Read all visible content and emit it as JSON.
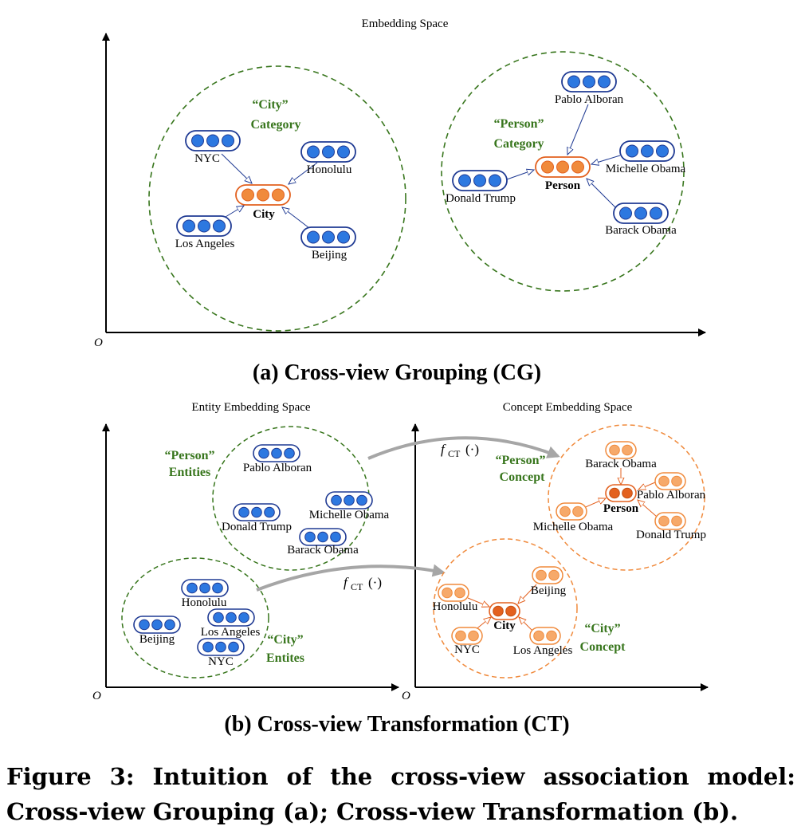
{
  "panel_a": {
    "title": "Embedding Space",
    "origin": "O",
    "subtitle": "(a) Cross-view Grouping (CG)",
    "city_group": {
      "label_line1": "“City”",
      "label_line2": "Category",
      "center": "City",
      "members": [
        "NYC",
        "Honolulu",
        "Los Angeles",
        "Beijing"
      ]
    },
    "person_group": {
      "label_line1": "“Person”",
      "label_line2": "Category",
      "center": "Person",
      "members": [
        "Pablo Alboran",
        "Michelle Obama",
        "Donald Trump",
        "Barack Obama"
      ]
    }
  },
  "panel_b": {
    "subtitle": "(b) Cross-view Transformation (CT)",
    "entity_space": {
      "title": "Entity Embedding Space",
      "origin": "O",
      "person_label_line1": "“Person”",
      "person_label_line2": "Entities",
      "city_label_line1": "“City”",
      "city_label_line2": "Entites",
      "person_members": [
        "Pablo Alboran",
        "Donald Trump",
        "Michelle Obama",
        "Barack Obama"
      ],
      "city_members": [
        "Honolulu",
        "Beijing",
        "Los Angeles",
        "NYC"
      ]
    },
    "concept_space": {
      "title": "Concept Embedding Space",
      "origin": "O",
      "person_label_line1": "“Person”",
      "person_label_line2": "Concept",
      "city_label_line1": "“City”",
      "city_label_line2": "Concept",
      "person_center": "Person",
      "city_center": "City",
      "person_members": [
        "Barack Obama",
        "Pablo Alboran",
        "Michelle Obama",
        "Donald Trump"
      ],
      "city_members": [
        "Beijing",
        "Honolulu",
        "NYC",
        "Los Angeles"
      ]
    },
    "transform_label_f": "f",
    "transform_label_sub": "CT",
    "transform_label_arg": "(·)"
  },
  "caption": "Figure 3: Intuition of the cross-view association model: Cross-view Grouping (a); Cross-view Transformation (b).",
  "colors": {
    "entity_blue": "#2d78e0",
    "entity_border": "#1f3a93",
    "concept_orange": "#f08a3c",
    "concept_light": "#f6a96a",
    "concept_center_dark": "#e3611f",
    "group_green": "#38761d",
    "arrow_gray": "#a6a6a6"
  }
}
